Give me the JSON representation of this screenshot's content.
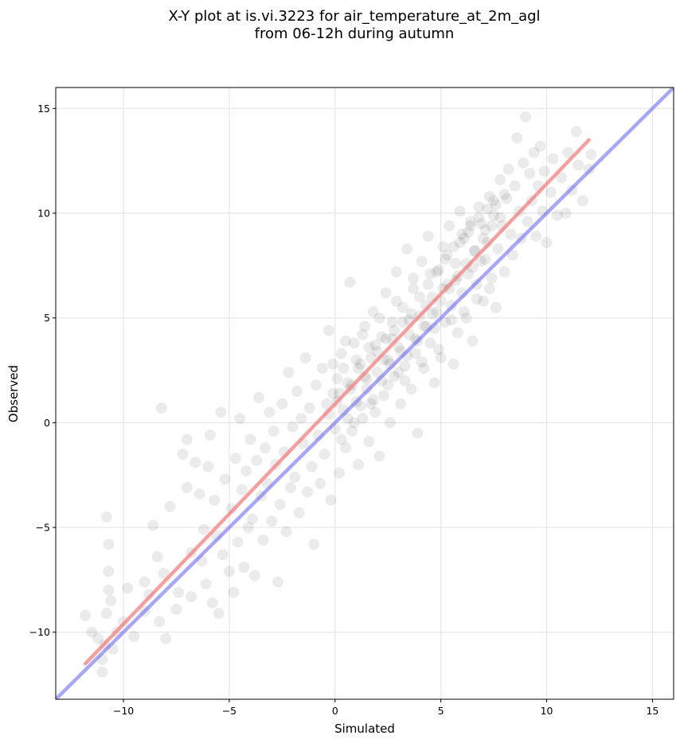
{
  "chart_data": {
    "type": "scatter",
    "title_line1": "X-Y plot at is.vi.3223 for air_temperature_at_2m_agl",
    "title_line2": "from 06-12h during autumn",
    "xlabel": "Simulated",
    "ylabel": "Observed",
    "xlim": [
      -13.2,
      16
    ],
    "ylim": [
      -13.2,
      16
    ],
    "xticks": [
      -10,
      -5,
      0,
      5,
      10,
      15
    ],
    "yticks": [
      -10,
      -5,
      0,
      5,
      10,
      15
    ],
    "xtick_labels": [
      "−10",
      "−5",
      "0",
      "5",
      "10",
      "15"
    ],
    "ytick_labels": [
      "−10",
      "−5",
      "0",
      "5",
      "10",
      "15"
    ],
    "grid": true,
    "point_color": "#000000",
    "point_alpha": 0.08,
    "regression_line": {
      "color": "#f08080",
      "x": [
        -11.8,
        12
      ],
      "y": [
        -11.5,
        13.5
      ]
    },
    "identity_line": {
      "color": "#6c6cf0",
      "x": [
        -13.2,
        16
      ],
      "y": [
        -13.2,
        16
      ]
    },
    "points": [
      [
        -11.8,
        -9.2
      ],
      [
        -11.5,
        -10.0
      ],
      [
        -11.2,
        -10.3
      ],
      [
        -11.0,
        -11.3
      ],
      [
        -11.0,
        -11.9
      ],
      [
        -10.9,
        -10.6
      ],
      [
        -10.8,
        -9.1
      ],
      [
        -10.8,
        -4.5
      ],
      [
        -10.7,
        -5.8
      ],
      [
        -10.7,
        -7.1
      ],
      [
        -10.7,
        -8.0
      ],
      [
        -10.6,
        -8.5
      ],
      [
        -10.5,
        -10.8
      ],
      [
        -10.3,
        -10.0
      ],
      [
        -10.0,
        -9.5
      ],
      [
        -9.8,
        -7.9
      ],
      [
        -9.5,
        -10.2
      ],
      [
        -9.0,
        -9.0
      ],
      [
        -9.0,
        -7.6
      ],
      [
        -8.8,
        -8.2
      ],
      [
        -8.6,
        -4.9
      ],
      [
        -8.4,
        -6.4
      ],
      [
        -8.3,
        -9.5
      ],
      [
        -8.2,
        0.7
      ],
      [
        -8.1,
        -7.2
      ],
      [
        -8.0,
        -10.3
      ],
      [
        -7.8,
        -4.0
      ],
      [
        -7.5,
        -8.9
      ],
      [
        -7.4,
        -8.1
      ],
      [
        -7.2,
        -1.5
      ],
      [
        -7.0,
        -3.1
      ],
      [
        -7.0,
        -0.8
      ],
      [
        -6.8,
        -6.2
      ],
      [
        -6.8,
        -8.3
      ],
      [
        -6.6,
        -1.9
      ],
      [
        -6.4,
        -3.4
      ],
      [
        -6.3,
        -6.6
      ],
      [
        -6.2,
        -5.1
      ],
      [
        -6.1,
        -7.7
      ],
      [
        -6.0,
        -2.1
      ],
      [
        -5.9,
        -0.6
      ],
      [
        -5.8,
        -8.6
      ],
      [
        -5.7,
        -3.7
      ],
      [
        -5.6,
        -5.4
      ],
      [
        -5.5,
        -9.1
      ],
      [
        -5.4,
        0.5
      ],
      [
        -5.3,
        -6.3
      ],
      [
        -5.2,
        -2.7
      ],
      [
        -5.0,
        -7.1
      ],
      [
        -4.9,
        -4.1
      ],
      [
        -4.8,
        -8.1
      ],
      [
        -4.7,
        -1.7
      ],
      [
        -4.6,
        -5.7
      ],
      [
        -4.5,
        0.2
      ],
      [
        -4.4,
        -3.2
      ],
      [
        -4.3,
        -6.9
      ],
      [
        -4.2,
        -2.3
      ],
      [
        -4.1,
        -5.0
      ],
      [
        -4.0,
        -0.8
      ],
      [
        -3.9,
        -4.6
      ],
      [
        -3.8,
        -7.3
      ],
      [
        -3.7,
        -1.8
      ],
      [
        -3.6,
        1.2
      ],
      [
        -3.5,
        -3.5
      ],
      [
        -3.4,
        -5.6
      ],
      [
        -3.3,
        -1.2
      ],
      [
        -3.2,
        -2.9
      ],
      [
        -3.1,
        0.5
      ],
      [
        -3.0,
        -4.7
      ],
      [
        -2.9,
        -0.4
      ],
      [
        -2.8,
        -2.0
      ],
      [
        -2.7,
        -7.6
      ],
      [
        -2.6,
        -3.9
      ],
      [
        -2.5,
        0.9
      ],
      [
        -2.4,
        -1.4
      ],
      [
        -2.3,
        -5.2
      ],
      [
        -2.2,
        2.4
      ],
      [
        -2.1,
        -3.1
      ],
      [
        -2.0,
        -0.2
      ],
      [
        -1.9,
        -2.6
      ],
      [
        -1.8,
        1.5
      ],
      [
        -1.7,
        -4.3
      ],
      [
        -1.6,
        0.2
      ],
      [
        -1.5,
        -1.0
      ],
      [
        -1.4,
        3.1
      ],
      [
        -1.3,
        -3.3
      ],
      [
        -1.2,
        0.7
      ],
      [
        -1.1,
        -2.1
      ],
      [
        -1.0,
        -5.8
      ],
      [
        -0.9,
        1.8
      ],
      [
        -0.8,
        -0.6
      ],
      [
        -0.7,
        -2.9
      ],
      [
        -0.6,
        2.6
      ],
      [
        -0.5,
        -1.5
      ],
      [
        -0.4,
        0.9
      ],
      [
        -0.3,
        4.4
      ],
      [
        -0.2,
        -3.7
      ],
      [
        -0.1,
        1.4
      ],
      [
        0.0,
        -0.3
      ],
      [
        0.1,
        2.1
      ],
      [
        0.2,
        -2.4
      ],
      [
        0.3,
        3.3
      ],
      [
        0.4,
        0.6
      ],
      [
        0.5,
        -1.2
      ],
      [
        0.6,
        1.9
      ],
      [
        0.7,
        6.7
      ],
      [
        0.8,
        -0.4
      ],
      [
        0.9,
        3.8
      ],
      [
        1.0,
        1.0
      ],
      [
        1.1,
        -2.0
      ],
      [
        1.2,
        2.8
      ],
      [
        1.3,
        0.2
      ],
      [
        1.4,
        4.6
      ],
      [
        1.5,
        1.6
      ],
      [
        1.6,
        -0.9
      ],
      [
        1.7,
        3.1
      ],
      [
        1.8,
        5.3
      ],
      [
        1.9,
        0.5
      ],
      [
        2.0,
        2.4
      ],
      [
        2.1,
        -1.6
      ],
      [
        2.2,
        4.1
      ],
      [
        2.3,
        1.3
      ],
      [
        2.4,
        6.2
      ],
      [
        2.5,
        3.0
      ],
      [
        2.6,
        0.0
      ],
      [
        2.7,
        4.8
      ],
      [
        2.8,
        2.2
      ],
      [
        2.9,
        7.2
      ],
      [
        3.0,
        3.6
      ],
      [
        3.1,
        0.9
      ],
      [
        3.2,
        5.5
      ],
      [
        3.3,
        2.7
      ],
      [
        3.4,
        8.3
      ],
      [
        3.5,
        4.2
      ],
      [
        3.6,
        1.6
      ],
      [
        3.7,
        6.4
      ],
      [
        3.8,
        3.3
      ],
      [
        3.9,
        -0.5
      ],
      [
        4.0,
        5.1
      ],
      [
        4.1,
        7.7
      ],
      [
        4.2,
        2.6
      ],
      [
        4.3,
        4.6
      ],
      [
        4.4,
        8.9
      ],
      [
        4.5,
        3.8
      ],
      [
        4.6,
        6.0
      ],
      [
        4.7,
        1.9
      ],
      [
        4.8,
        5.3
      ],
      [
        4.9,
        7.3
      ],
      [
        5.0,
        3.1
      ],
      [
        5.1,
        8.4
      ],
      [
        5.2,
        4.8
      ],
      [
        5.3,
        6.6
      ],
      [
        5.4,
        9.4
      ],
      [
        5.5,
        5.6
      ],
      [
        5.6,
        2.8
      ],
      [
        5.7,
        7.6
      ],
      [
        5.8,
        4.3
      ],
      [
        5.9,
        10.1
      ],
      [
        6.0,
        6.2
      ],
      [
        6.1,
        8.8
      ],
      [
        6.2,
        5.0
      ],
      [
        6.3,
        7.1
      ],
      [
        6.4,
        9.6
      ],
      [
        6.5,
        3.9
      ],
      [
        6.6,
        8.2
      ],
      [
        6.7,
        6.6
      ],
      [
        6.8,
        10.3
      ],
      [
        6.9,
        7.7
      ],
      [
        7.0,
        5.8
      ],
      [
        7.1,
        9.2
      ],
      [
        7.2,
        8.6
      ],
      [
        7.3,
        10.8
      ],
      [
        7.4,
        6.9
      ],
      [
        7.5,
        9.9
      ],
      [
        7.6,
        5.5
      ],
      [
        7.7,
        8.3
      ],
      [
        7.8,
        11.6
      ],
      [
        7.9,
        9.4
      ],
      [
        8.0,
        7.2
      ],
      [
        8.1,
        10.7
      ],
      [
        8.2,
        12.1
      ],
      [
        8.3,
        9.0
      ],
      [
        8.4,
        8.0
      ],
      [
        8.5,
        11.3
      ],
      [
        8.6,
        13.6
      ],
      [
        8.7,
        10.1
      ],
      [
        8.8,
        8.8
      ],
      [
        8.9,
        12.4
      ],
      [
        9.0,
        14.6
      ],
      [
        9.1,
        9.6
      ],
      [
        9.2,
        11.9
      ],
      [
        9.3,
        10.6
      ],
      [
        9.4,
        12.9
      ],
      [
        9.5,
        8.9
      ],
      [
        9.6,
        11.3
      ],
      [
        9.7,
        13.2
      ],
      [
        9.8,
        10.1
      ],
      [
        9.9,
        12.0
      ],
      [
        10.0,
        8.6
      ],
      [
        10.2,
        11.0
      ],
      [
        10.3,
        12.6
      ],
      [
        10.5,
        9.9
      ],
      [
        10.7,
        11.7
      ],
      [
        10.9,
        10.0
      ],
      [
        11.0,
        12.9
      ],
      [
        11.2,
        11.1
      ],
      [
        11.4,
        13.9
      ],
      [
        11.5,
        12.3
      ],
      [
        11.7,
        10.6
      ],
      [
        12.0,
        12.1
      ],
      [
        12.1,
        12.8
      ],
      [
        0.2,
        1.4
      ],
      [
        0.4,
        2.6
      ],
      [
        0.6,
        0.2
      ],
      [
        0.8,
        1.8
      ],
      [
        1.0,
        3.0
      ],
      [
        1.2,
        0.8
      ],
      [
        1.4,
        2.2
      ],
      [
        1.6,
        3.6
      ],
      [
        1.8,
        1.1
      ],
      [
        2.0,
        3.4
      ],
      [
        2.2,
        2.0
      ],
      [
        2.4,
        4.0
      ],
      [
        2.6,
        2.8
      ],
      [
        2.8,
        4.4
      ],
      [
        3.0,
        2.4
      ],
      [
        3.2,
        4.8
      ],
      [
        3.4,
        3.2
      ],
      [
        3.6,
        5.2
      ],
      [
        3.8,
        4.0
      ],
      [
        4.0,
        6.0
      ],
      [
        4.2,
        4.6
      ],
      [
        4.4,
        6.6
      ],
      [
        4.6,
        5.2
      ],
      [
        4.8,
        7.2
      ],
      [
        5.0,
        5.8
      ],
      [
        5.2,
        7.8
      ],
      [
        5.4,
        6.4
      ],
      [
        5.6,
        8.4
      ],
      [
        5.8,
        7.0
      ],
      [
        6.0,
        9.0
      ],
      [
        6.2,
        7.6
      ],
      [
        6.4,
        9.4
      ],
      [
        6.6,
        8.2
      ],
      [
        6.8,
        9.8
      ],
      [
        7.0,
        8.8
      ],
      [
        7.2,
        10.2
      ],
      [
        7.4,
        9.4
      ],
      [
        7.6,
        10.4
      ],
      [
        7.8,
        9.8
      ],
      [
        8.0,
        10.9
      ],
      [
        -0.3,
        0.4
      ],
      [
        -0.1,
        2.8
      ],
      [
        0.1,
        1.0
      ],
      [
        0.3,
        -0.8
      ],
      [
        0.5,
        3.9
      ],
      [
        0.7,
        1.6
      ],
      [
        0.9,
        0.0
      ],
      [
        1.1,
        2.6
      ],
      [
        1.3,
        4.2
      ],
      [
        1.5,
        2.1
      ],
      [
        1.7,
        0.9
      ],
      [
        1.9,
        3.7
      ],
      [
        2.1,
        5.0
      ],
      [
        2.3,
        3.0
      ],
      [
        2.5,
        1.8
      ],
      [
        2.7,
        4.0
      ],
      [
        2.9,
        5.8
      ],
      [
        3.1,
        3.4
      ],
      [
        3.3,
        2.0
      ],
      [
        3.5,
        4.9
      ],
      [
        3.7,
        6.9
      ],
      [
        3.9,
        3.9
      ],
      [
        4.1,
        2.9
      ],
      [
        4.3,
        5.6
      ],
      [
        4.5,
        7.1
      ],
      [
        4.7,
        4.5
      ],
      [
        4.9,
        3.5
      ],
      [
        5.1,
        6.4
      ],
      [
        5.3,
        8.0
      ],
      [
        5.5,
        4.9
      ],
      [
        5.7,
        6.8
      ],
      [
        5.9,
        8.6
      ],
      [
        6.1,
        5.3
      ],
      [
        6.3,
        9.1
      ],
      [
        6.5,
        7.4
      ],
      [
        6.7,
        5.9
      ],
      [
        6.9,
        9.5
      ],
      [
        7.1,
        7.8
      ],
      [
        7.3,
        6.4
      ],
      [
        7.5,
        10.6
      ]
    ]
  }
}
